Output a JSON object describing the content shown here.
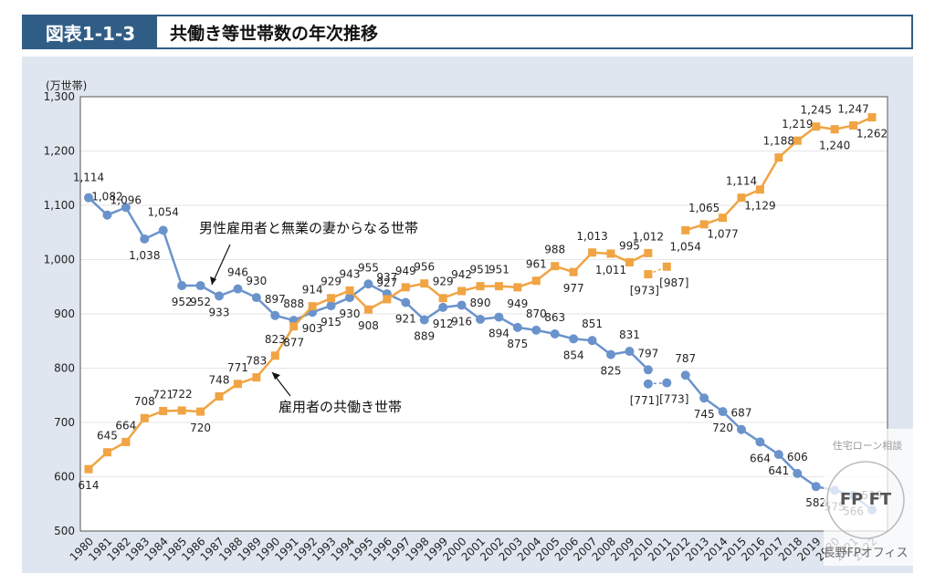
{
  "header": {
    "figure_number": "図表1-1-3",
    "title": "共働き等世帯数の年次推移"
  },
  "watermark": {
    "top_text": "住宅ローン相談",
    "badge_text": "FP FT",
    "bottom_text": "長野FPオフィス"
  },
  "chart_data": {
    "type": "line",
    "unit_label": "(万世帯)",
    "ylim": [
      500,
      1300
    ],
    "yticks": [
      "500",
      "600",
      "700",
      "800",
      "900",
      "1,000",
      "1,100",
      "1,200",
      "1,300"
    ],
    "categories": [
      "1980",
      "1981",
      "1982",
      "1983",
      "1984",
      "1985",
      "1986",
      "1987",
      "1988",
      "1989",
      "1990",
      "1991",
      "1992",
      "1993",
      "1994",
      "1995",
      "1996",
      "1997",
      "1998",
      "1999",
      "2000",
      "2001",
      "2002",
      "2003",
      "2004",
      "2005",
      "2006",
      "2007",
      "2008",
      "2009",
      "2010",
      "2011",
      "2012",
      "2013",
      "2014",
      "2015",
      "2016",
      "2017",
      "2018",
      "2019",
      "2020",
      "2021",
      "2022"
    ],
    "series": [
      {
        "name": "男性雇用者と無業の妻からなる世帯",
        "color": "#6a93cc",
        "marker": "circle",
        "values": [
          1114,
          1082,
          1096,
          1038,
          1054,
          952,
          952,
          933,
          946,
          930,
          897,
          888,
          903,
          915,
          930,
          955,
          937,
          921,
          889,
          912,
          916,
          890,
          894,
          875,
          870,
          863,
          854,
          851,
          825,
          831,
          797,
          null,
          787,
          745,
          720,
          687,
          664,
          641,
          606,
          582,
          575,
          566,
          539
        ],
        "labels": [
          "1,114",
          "1,082",
          "1,096",
          "1,038",
          "1,054",
          "952",
          "952",
          "933",
          "946",
          "930",
          "897",
          "888",
          "903",
          "915",
          "930",
          "955",
          "937",
          "921",
          "889",
          "912",
          "916",
          "890",
          "894",
          "875",
          "870",
          "863",
          "854",
          "851",
          "825",
          "831",
          "797",
          "",
          "787",
          "745",
          "720",
          "687",
          "664",
          "641",
          "606",
          "582",
          "575",
          "566",
          "539"
        ],
        "bracket_values": [
          771,
          773
        ],
        "bracket_labels": [
          "[771]",
          "[773]"
        ]
      },
      {
        "name": "雇用者の共働き世帯",
        "color": "#f0a443",
        "marker": "square",
        "values": [
          614,
          645,
          664,
          708,
          721,
          722,
          720,
          748,
          771,
          783,
          823,
          877,
          914,
          929,
          943,
          908,
          927,
          949,
          956,
          929,
          942,
          951,
          951,
          949,
          961,
          988,
          977,
          1013,
          1011,
          995,
          1012,
          null,
          1054,
          1065,
          1077,
          1114,
          1129,
          1188,
          1219,
          1245,
          1240,
          1247,
          1262
        ],
        "labels": [
          "614",
          "645",
          "664",
          "708",
          "721",
          "722",
          "720",
          "748",
          "771",
          "783",
          "823",
          "877",
          "914",
          "929",
          "943",
          "908",
          "927",
          "949",
          "956",
          "929",
          "942",
          "951",
          "951",
          "949",
          "961",
          "988",
          "977",
          "1,013",
          "1,011",
          "995",
          "1,012",
          "",
          "1,054",
          "1,065",
          "1,077",
          "1,114",
          "1,129",
          "1,188",
          "1,219",
          "1,245",
          "1,240",
          "1,247",
          "1,262"
        ],
        "bracket_values": [
          973,
          987
        ],
        "bracket_labels": [
          "[973]",
          "[987]"
        ]
      }
    ],
    "annotations": [
      {
        "text": "男性雇用者と無業の妻からなる世帯"
      },
      {
        "text": "雇用者の共働き世帯"
      }
    ]
  }
}
